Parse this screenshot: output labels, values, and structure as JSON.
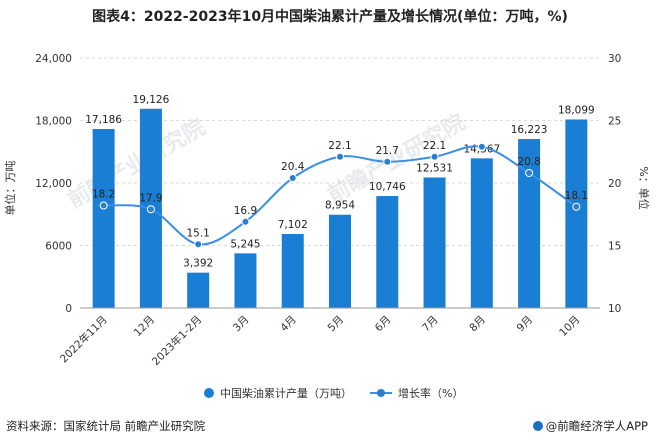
{
  "title": "图表4：2022-2023年10月中国柴油累计产量及增长情况(单位：万吨，%)",
  "source": "资料来源：国家统计局 前瞻产业研究院",
  "brand": "@前瞻经济学人APP",
  "watermark": "前瞻产业研究院",
  "colors": {
    "bar": "#1a7fd4",
    "line": "#3a8ee6",
    "point": "#2a7fd0"
  },
  "chart_data": {
    "type": "bar",
    "categories": [
      "2022年11月",
      "12月",
      "2023年1-2月",
      "3月",
      "4月",
      "5月",
      "6月",
      "7月",
      "8月",
      "9月",
      "10月"
    ],
    "series": [
      {
        "name": "中国柴油累计产量（万吨）",
        "type": "bar",
        "axis": "left",
        "values": [
          17186,
          19126,
          3392,
          5245,
          7102,
          8954,
          10746,
          12531,
          14367,
          16223,
          18099
        ],
        "labels": [
          "17,186",
          "19,126",
          "3,392",
          "5,245",
          "7,102",
          "8,954",
          "10,746",
          "12,531",
          "14,367",
          "16,223",
          "18,099"
        ]
      },
      {
        "name": "增长率（%）",
        "type": "line",
        "axis": "right",
        "values": [
          18.2,
          17.9,
          15.1,
          16.9,
          20.4,
          22.1,
          21.7,
          22.1,
          22.9,
          20.8,
          18.1
        ],
        "labels": [
          "18.2",
          "17.9",
          "15.1",
          "16.9",
          "20.4",
          "22.1",
          "21.7",
          "22.1",
          "",
          "20.8",
          "18.1"
        ]
      }
    ],
    "ylabel": "单位：万吨",
    "y2label": "%：单位",
    "ylim": [
      0,
      24000
    ],
    "yticks": [
      0,
      6000,
      12000,
      18000,
      24000
    ],
    "ytick_labels": [
      "0",
      "6000",
      "12,000",
      "18,000",
      "24,000"
    ],
    "y2lim": [
      10,
      30
    ],
    "y2ticks": [
      10,
      15,
      20,
      25,
      30
    ],
    "grid": true,
    "legend_position": "bottom"
  }
}
